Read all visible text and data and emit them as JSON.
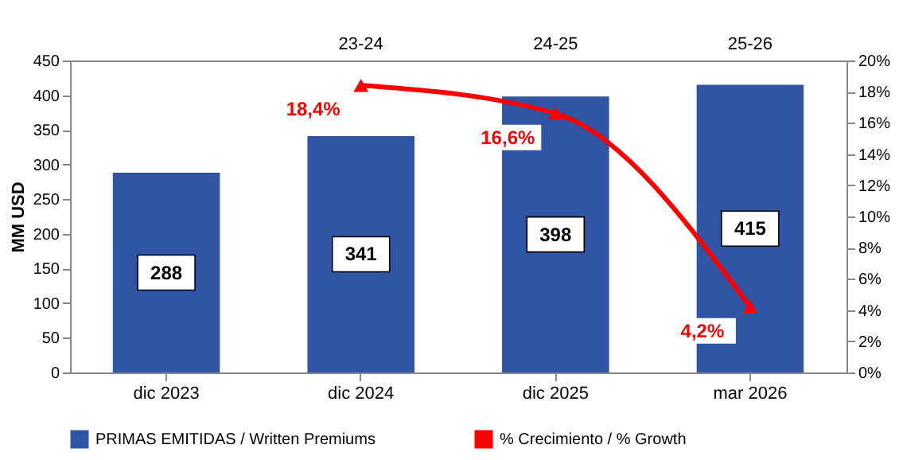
{
  "chart_data": {
    "type": "bar",
    "ylabel": "MM  USD",
    "categories": [
      "dic 2023",
      "dic 2024",
      "dic 2025",
      "mar 2026"
    ],
    "series": [
      {
        "name": "PRIMAS EMITIDAS / Written Premiums",
        "color": "#2f55a4",
        "values": [
          288,
          341,
          398,
          415
        ],
        "data_labels": true
      },
      {
        "name": "% Crecimiento / % Growth",
        "type": "line",
        "axis": "y2",
        "color": "#ff0000",
        "marker": "triangle",
        "values": [
          null,
          18.4,
          16.6,
          4.2
        ],
        "value_labels": [
          null,
          "18,4%",
          "16,6%",
          "4,2%"
        ]
      }
    ],
    "ylim": [
      0,
      450
    ],
    "yticks": [
      0,
      50,
      100,
      150,
      200,
      250,
      300,
      350,
      400,
      450
    ],
    "y2lim": [
      0,
      20
    ],
    "y2ticks": [
      {
        "value": 0,
        "label": "0%"
      },
      {
        "value": 2,
        "label": "2%"
      },
      {
        "value": 4,
        "label": "4%"
      },
      {
        "value": 6,
        "label": "6%"
      },
      {
        "value": 8,
        "label": "8%"
      },
      {
        "value": 10,
        "label": "10%"
      },
      {
        "value": 12,
        "label": "12%"
      },
      {
        "value": 14,
        "label": "14%"
      },
      {
        "value": 16,
        "label": "16%"
      },
      {
        "value": 18,
        "label": "18%"
      },
      {
        "value": 20,
        "label": "20%"
      }
    ],
    "annotations": [
      "23-24",
      "24-25",
      "25-26"
    ],
    "legend": "bottom",
    "grid": false
  }
}
